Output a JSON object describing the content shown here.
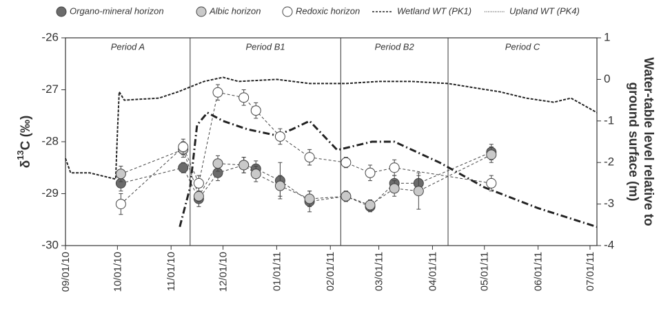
{
  "chart_data": {
    "type": "scatter",
    "y_label": {
      "prefix": "δ",
      "sup": "13",
      "suffix": "C (‰)"
    },
    "y2_label": [
      "Water-table level relative to",
      "ground surface (m)"
    ],
    "xlim": [
      "09/01/10",
      "07/05/11"
    ],
    "xticks": [
      "09/01/10",
      "10/01/10",
      "11/01/10",
      "12/01/10",
      "01/01/11",
      "02/01/11",
      "03/01/11",
      "04/01/11",
      "05/01/11",
      "06/01/11",
      "07/01/11"
    ],
    "ylim": [
      -30,
      -26
    ],
    "yticks": [
      -30,
      -29,
      -28,
      -27,
      -26
    ],
    "y2lim": [
      -4,
      1
    ],
    "y2ticks": [
      -4,
      -3,
      -2,
      -1,
      0,
      1
    ],
    "period_labels": [
      "Period A",
      "Period B1",
      "Period B2",
      "Period C"
    ],
    "period_boundaries": [
      "11/12/10",
      "02/07/11",
      "04/10/11"
    ],
    "series": [
      {
        "name": "Organo-mineral horizon",
        "color": "#6b6b6b",
        "x": [
          "10/03/10",
          "11/08/10",
          "11/17/10",
          "11/28/10",
          "12/13/10",
          "12/20/10",
          "01/03/11",
          "01/20/11",
          "02/10/11",
          "02/24/11",
          "03/10/11",
          "03/24/11",
          "05/05/11"
        ],
        "values": [
          -28.8,
          -28.5,
          -29.1,
          -28.6,
          -28.45,
          -28.52,
          -28.75,
          -29.15,
          -29.05,
          -29.25,
          -28.8,
          -28.8,
          -28.2
        ],
        "errors": [
          0.15,
          0.1,
          0.15,
          0.15,
          0.15,
          0.15,
          0.35,
          0.2,
          0.1,
          0.1,
          0.15,
          0.15,
          0.15
        ]
      },
      {
        "name": "Albic horizon",
        "color": "#c9c9c9",
        "x": [
          "10/03/10",
          "11/08/10",
          "11/17/10",
          "11/28/10",
          "12/13/10",
          "12/20/10",
          "01/03/11",
          "01/20/11",
          "02/10/11",
          "02/24/11",
          "03/10/11",
          "03/24/11",
          "05/05/11"
        ],
        "values": [
          -28.62,
          -28.15,
          -29.05,
          -28.42,
          -28.45,
          -28.62,
          -28.85,
          -29.1,
          -29.05,
          -29.22,
          -28.9,
          -28.95,
          -28.25
        ],
        "errors": [
          0.15,
          0.15,
          0.1,
          0.15,
          0.15,
          0.15,
          0.2,
          0.15,
          0.1,
          0.1,
          0.15,
          0.35,
          0.15
        ]
      },
      {
        "name": "Redoxic horizon",
        "color": "#ffffff",
        "x": [
          "10/03/10",
          "11/08/10",
          "11/17/10",
          "11/28/10",
          "12/13/10",
          "12/20/10",
          "01/03/11",
          "01/20/11",
          "02/10/11",
          "02/24/11",
          "03/10/11",
          "05/05/11"
        ],
        "values": [
          -29.2,
          -28.1,
          -28.8,
          -27.05,
          -27.15,
          -27.4,
          -27.9,
          -28.3,
          -28.4,
          -28.6,
          -28.5,
          -28.8
        ],
        "errors": [
          0.2,
          0.15,
          0.15,
          0.15,
          0.15,
          0.15,
          0.15,
          0.15,
          0.1,
          0.15,
          0.15,
          0.15
        ]
      },
      {
        "name": "Wetland WT (PK1)",
        "color": "#222222",
        "axis": "y2",
        "x": [
          "09/01/10",
          "09/04/10",
          "09/15/10",
          "09/30/10",
          "10/01/10",
          "10/02/10",
          "10/05/10",
          "10/25/10",
          "11/05/10",
          "11/20/10",
          "12/01/10",
          "12/10/10",
          "01/01/11",
          "01/20/11",
          "02/10/11",
          "03/01/11",
          "03/20/11",
          "04/10/11",
          "04/25/11",
          "05/10/11",
          "05/25/11",
          "06/10/11",
          "06/20/11",
          "07/05/11"
        ],
        "values": [
          -1.9,
          -2.25,
          -2.25,
          -2.4,
          -1.3,
          -0.3,
          -0.5,
          -0.45,
          -0.3,
          -0.05,
          0.05,
          -0.05,
          0,
          -0.1,
          -0.1,
          -0.05,
          -0.05,
          -0.1,
          -0.2,
          -0.3,
          -0.45,
          -0.55,
          -0.45,
          -0.8
        ]
      },
      {
        "name": "Upland WT (PK4)",
        "color": "#222222",
        "axis": "y2",
        "x": [
          "11/06/10",
          "11/12/10",
          "11/16/10",
          "11/22/10",
          "12/01/10",
          "12/15/10",
          "01/01/11",
          "01/10/11",
          "01/20/11",
          "02/05/11",
          "02/25/11",
          "03/10/11",
          "04/05/11",
          "05/01/11",
          "06/01/11",
          "07/05/11"
        ],
        "values": [
          -3.55,
          -2.6,
          -1.1,
          -0.8,
          -1.0,
          -1.2,
          -1.35,
          -1.2,
          -1.0,
          -1.7,
          -1.5,
          -1.5,
          -2.0,
          -2.6,
          -3.1,
          -3.55
        ]
      }
    ]
  }
}
